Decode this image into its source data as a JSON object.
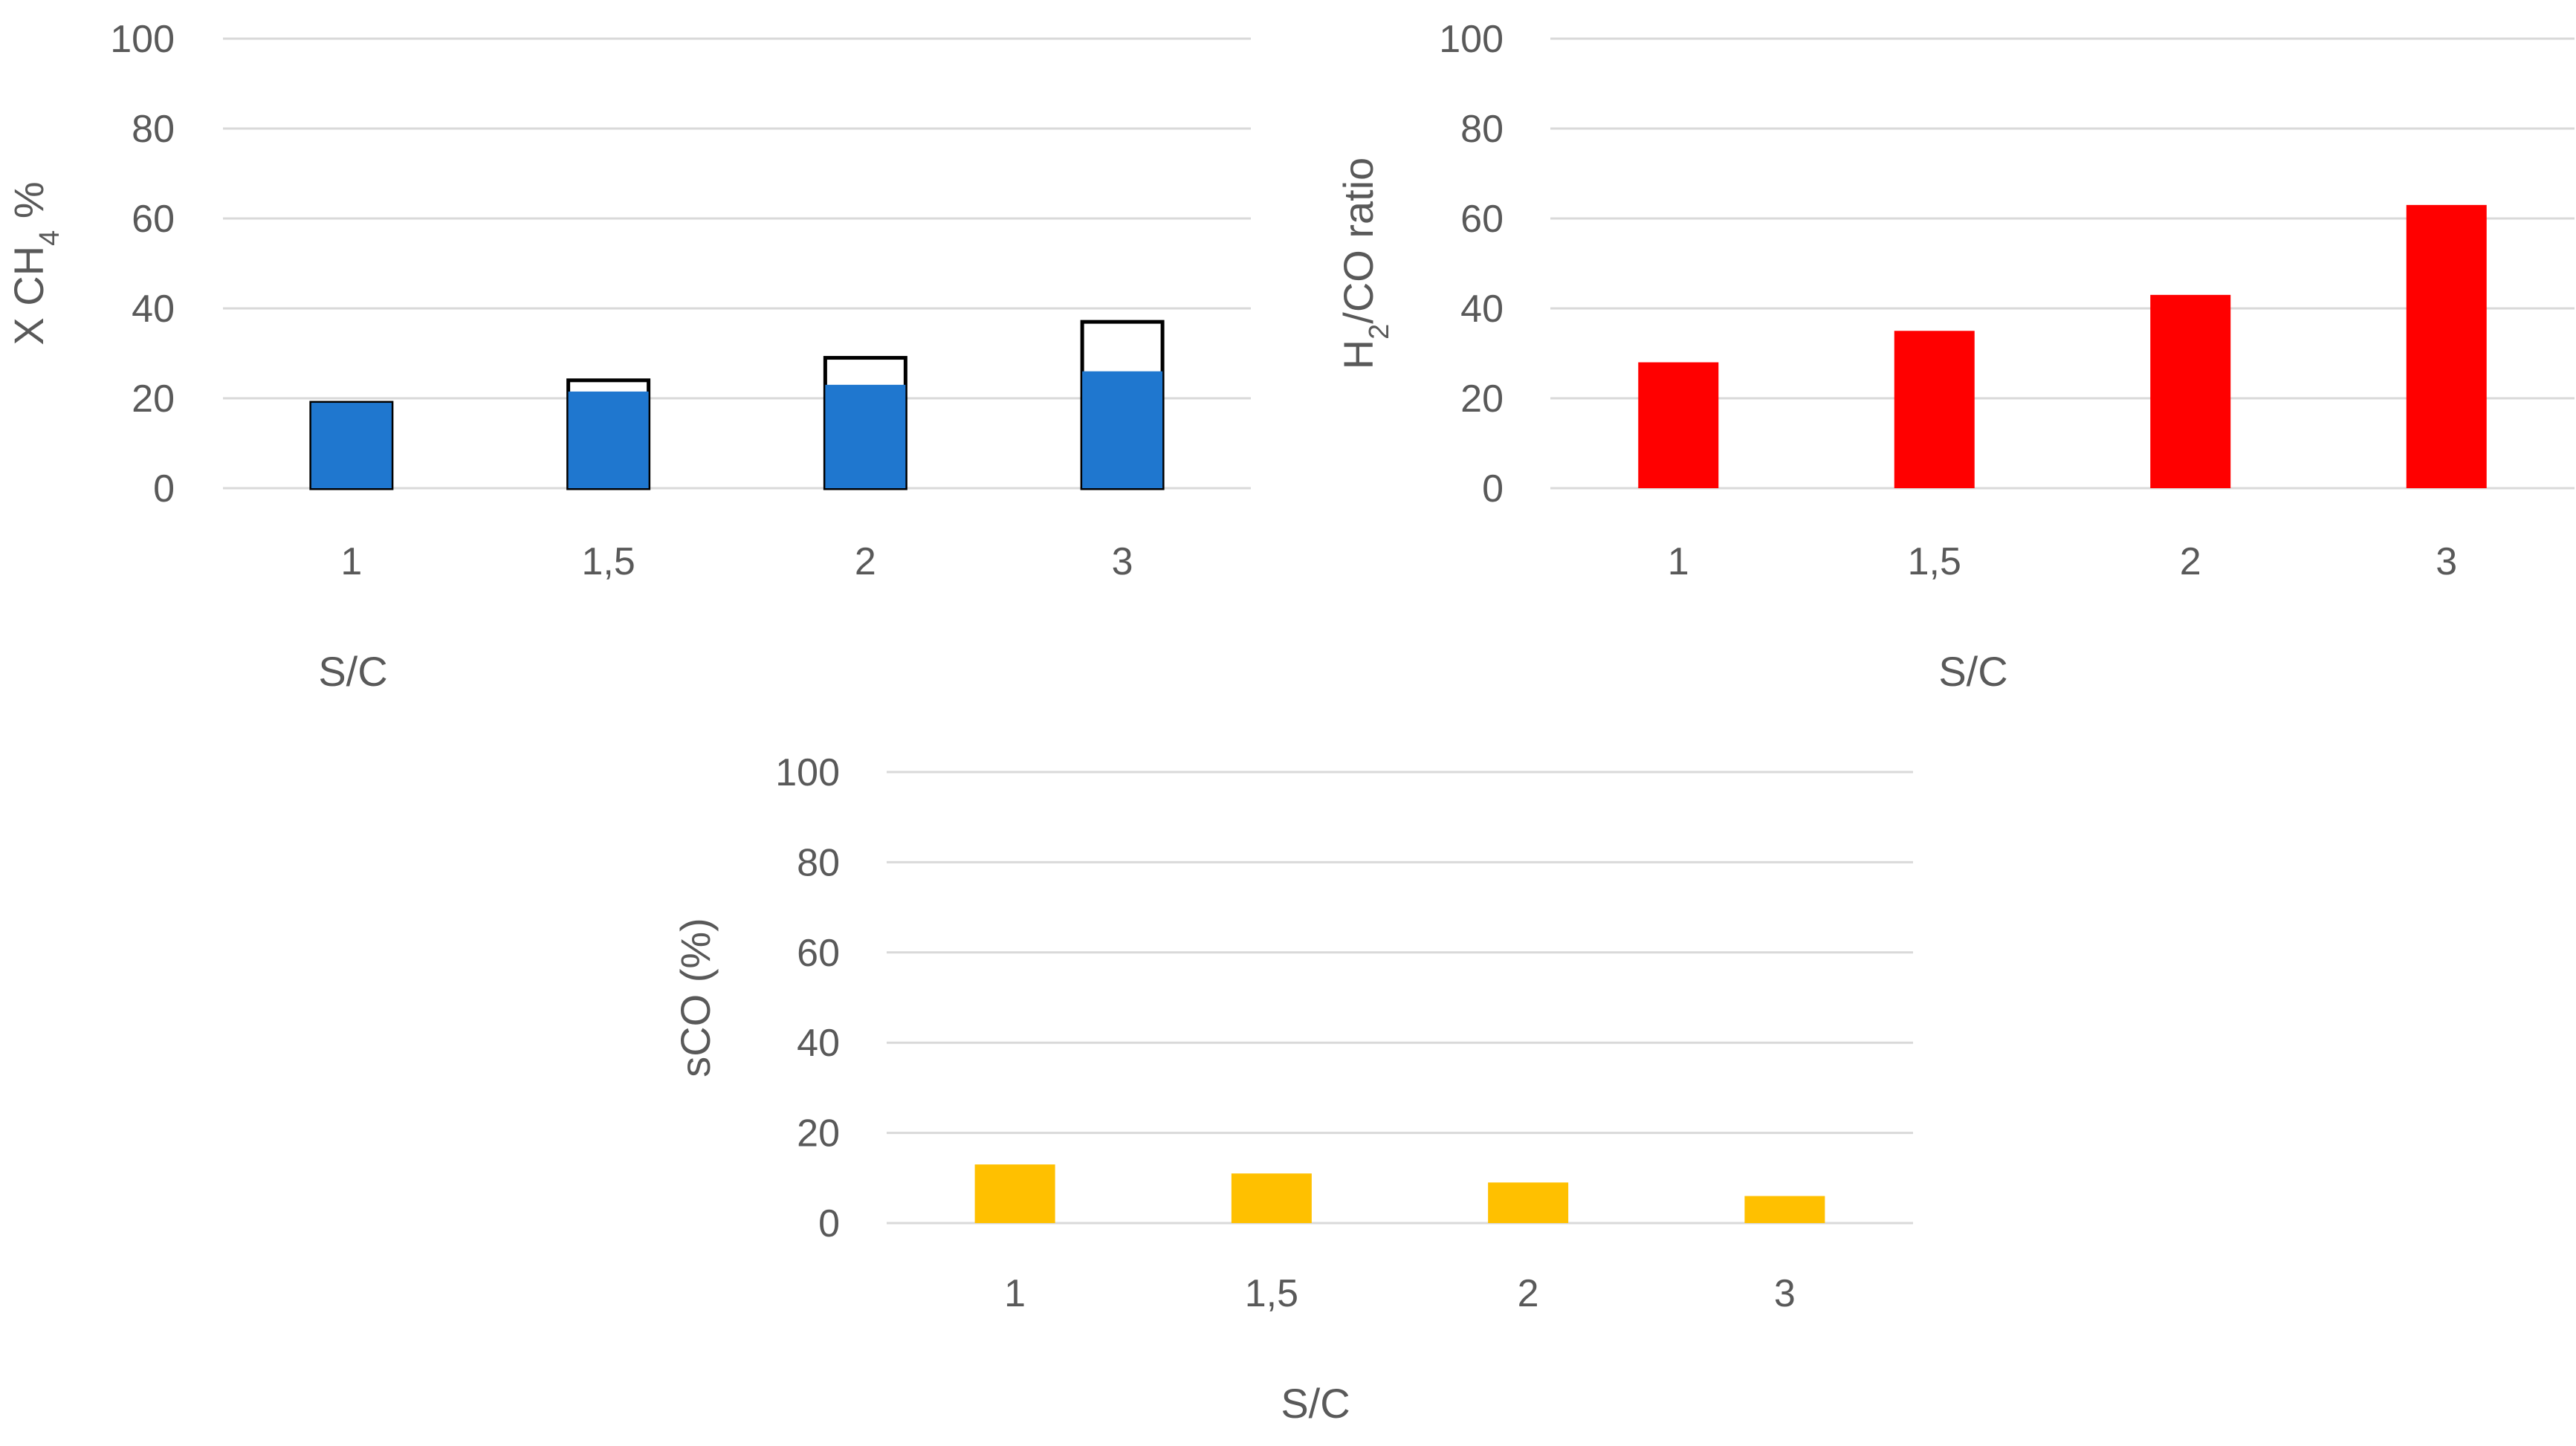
{
  "chart_data": [
    {
      "id": "xch4",
      "type": "bar",
      "categories": [
        "1",
        "1,5",
        "2",
        "3"
      ],
      "series": [
        {
          "name": "outline",
          "values": [
            19,
            24,
            29,
            37
          ],
          "color": "#ffffff",
          "stroke": "#000000"
        },
        {
          "name": "filled",
          "values": [
            19,
            21.5,
            23,
            26
          ],
          "color": "#1F77CF"
        }
      ],
      "xlabel": "S/C",
      "ylabel": {
        "pre": "X CH",
        "sub": "4",
        "post": " %"
      },
      "yticks": [
        "0",
        "20",
        "40",
        "60",
        "80",
        "100"
      ],
      "ylim": [
        0,
        100
      ],
      "grid": true
    },
    {
      "id": "h2co",
      "type": "bar",
      "categories": [
        "1",
        "1,5",
        "2",
        "3"
      ],
      "series": [
        {
          "name": "H2/CO ratio",
          "values": [
            28,
            35,
            43,
            63
          ],
          "color": "#FF0000"
        }
      ],
      "xlabel": "S/C",
      "ylabel": {
        "pre": "H",
        "sub": "2",
        "post": "/CO ratio"
      },
      "yticks": [
        "0",
        "20",
        "40",
        "60",
        "80",
        "100"
      ],
      "ylim": [
        0,
        100
      ],
      "grid": true
    },
    {
      "id": "sco",
      "type": "bar",
      "categories": [
        "1",
        "1,5",
        "2",
        "3"
      ],
      "series": [
        {
          "name": "sCO (%)",
          "values": [
            13,
            11,
            9,
            6
          ],
          "color": "#FFC000"
        }
      ],
      "xlabel": "S/C",
      "ylabel": {
        "pre": "sCO (%)",
        "sub": "",
        "post": ""
      },
      "yticks": [
        "0",
        "20",
        "40",
        "60",
        "80",
        "100"
      ],
      "ylim": [
        0,
        100
      ],
      "grid": true
    }
  ]
}
